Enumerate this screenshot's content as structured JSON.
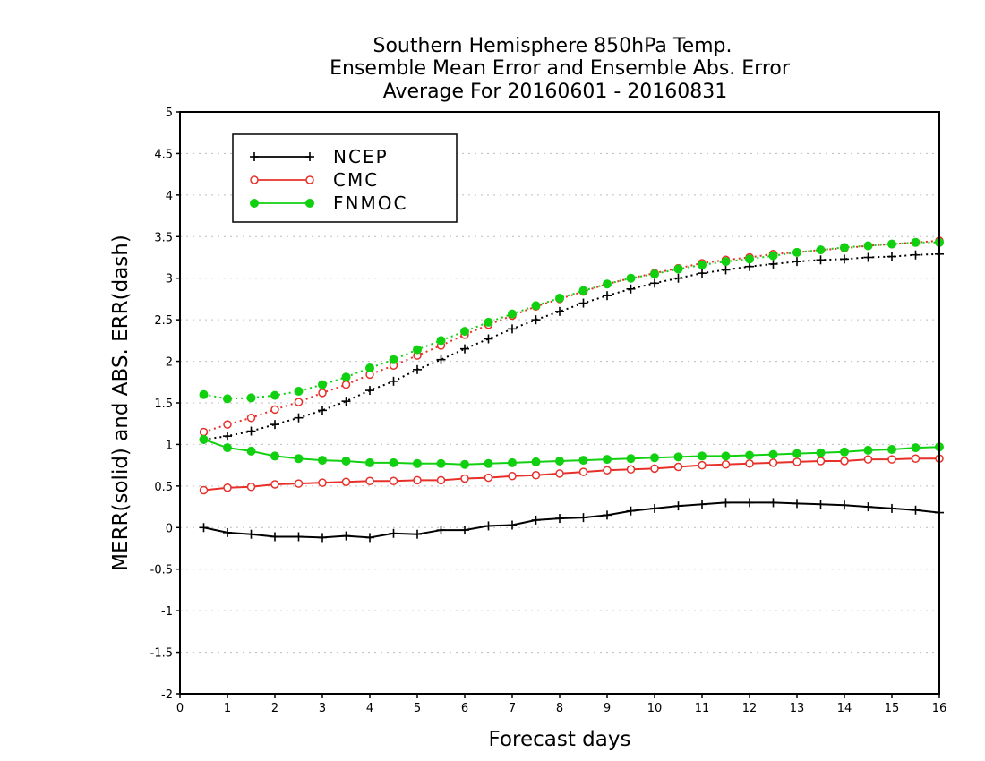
{
  "title_lines": [
    "Southern Hemisphere 850hPa Temp.",
    "Ensemble Mean Error and Ensemble Abs. Error",
    "Average For 20160601 - 20160831"
  ],
  "colors": {
    "NCEP": "#000000",
    "CMC": "#e8302a",
    "FNMOC": "#10d010"
  },
  "chart_data": {
    "type": "line",
    "title": "Southern Hemisphere 850hPa Temp.\nEnsemble Mean Error and Ensemble Abs. Error\nAverage For 20160601 - 20160831",
    "xlabel": "Forecast days",
    "ylabel": "MERR(solid) and ABS. ERR(dash)",
    "xlim": [
      0,
      16
    ],
    "ylim": [
      -2,
      5
    ],
    "x_ticks": [
      "0",
      "1",
      "2",
      "3",
      "4",
      "5",
      "6",
      "7",
      "8",
      "9",
      "10",
      "11",
      "12",
      "13",
      "14",
      "15",
      "16"
    ],
    "y_ticks": [
      "5",
      "4.5",
      "4",
      "3.5",
      "3",
      "2.5",
      "2",
      "1.5",
      "1",
      "0.5",
      "0",
      "-0.5",
      "-1",
      "-1.5",
      "-2"
    ],
    "grid": "horizontal dotted",
    "legend_position": "top-left",
    "x": [
      0.5,
      1,
      1.5,
      2,
      2.5,
      3,
      3.5,
      4,
      4.5,
      5,
      5.5,
      6,
      6.5,
      7,
      7.5,
      8,
      8.5,
      9,
      9.5,
      10,
      10.5,
      11,
      11.5,
      12,
      12.5,
      13,
      13.5,
      14,
      14.5,
      15,
      15.5,
      16
    ],
    "series": [
      {
        "name": "NCEP",
        "merr": [
          0.0,
          -0.06,
          -0.08,
          -0.11,
          -0.11,
          -0.12,
          -0.1,
          -0.12,
          -0.07,
          -0.08,
          -0.03,
          -0.03,
          0.02,
          0.03,
          0.09,
          0.11,
          0.12,
          0.15,
          0.2,
          0.23,
          0.26,
          0.28,
          0.3,
          0.3,
          0.3,
          0.29,
          0.28,
          0.27,
          0.25,
          0.23,
          0.21,
          0.18
        ],
        "abs_err": [
          1.06,
          1.1,
          1.16,
          1.24,
          1.32,
          1.41,
          1.52,
          1.65,
          1.76,
          1.9,
          2.02,
          2.15,
          2.27,
          2.39,
          2.5,
          2.6,
          2.7,
          2.79,
          2.87,
          2.94,
          3.0,
          3.06,
          3.1,
          3.14,
          3.17,
          3.2,
          3.22,
          3.23,
          3.25,
          3.26,
          3.28,
          3.29
        ]
      },
      {
        "name": "CMC",
        "merr": [
          0.45,
          0.48,
          0.49,
          0.52,
          0.53,
          0.54,
          0.55,
          0.56,
          0.56,
          0.57,
          0.57,
          0.59,
          0.6,
          0.62,
          0.63,
          0.65,
          0.67,
          0.69,
          0.7,
          0.71,
          0.73,
          0.75,
          0.76,
          0.77,
          0.78,
          0.79,
          0.8,
          0.8,
          0.82,
          0.82,
          0.83,
          0.83
        ],
        "abs_err": [
          1.15,
          1.24,
          1.32,
          1.42,
          1.51,
          1.62,
          1.72,
          1.84,
          1.95,
          2.07,
          2.19,
          2.32,
          2.44,
          2.55,
          2.66,
          2.75,
          2.84,
          2.93,
          3.0,
          3.06,
          3.12,
          3.18,
          3.22,
          3.25,
          3.29,
          3.31,
          3.34,
          3.36,
          3.39,
          3.41,
          3.43,
          3.45
        ]
      },
      {
        "name": "FNMOC",
        "merr": [
          1.06,
          0.96,
          0.92,
          0.86,
          0.83,
          0.81,
          0.8,
          0.78,
          0.78,
          0.77,
          0.77,
          0.76,
          0.77,
          0.78,
          0.79,
          0.8,
          0.81,
          0.82,
          0.83,
          0.84,
          0.85,
          0.86,
          0.86,
          0.87,
          0.88,
          0.89,
          0.9,
          0.91,
          0.93,
          0.94,
          0.96,
          0.97
        ],
        "abs_err": [
          1.6,
          1.55,
          1.56,
          1.59,
          1.64,
          1.72,
          1.81,
          1.92,
          2.02,
          2.14,
          2.25,
          2.36,
          2.47,
          2.57,
          2.67,
          2.76,
          2.85,
          2.93,
          3.0,
          3.05,
          3.11,
          3.16,
          3.2,
          3.23,
          3.27,
          3.31,
          3.34,
          3.37,
          3.39,
          3.41,
          3.43,
          3.43
        ]
      }
    ]
  }
}
